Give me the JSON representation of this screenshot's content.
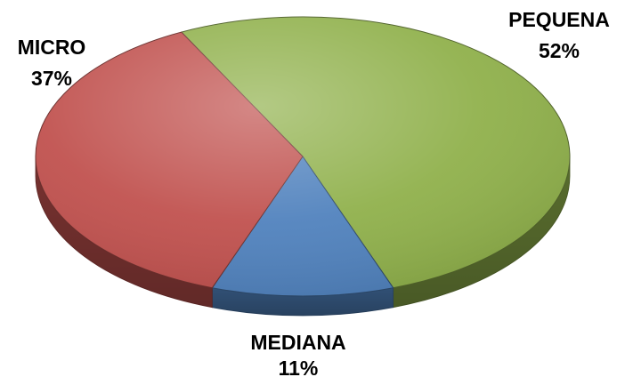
{
  "chart_data": {
    "type": "pie",
    "style": "3d",
    "slices": [
      {
        "label": "PEQUENA",
        "value": 52,
        "value_label": "52%",
        "color": "#8fb04a"
      },
      {
        "label": "MEDIANA",
        "value": 11,
        "value_label": "11%",
        "color": "#4f81bd"
      },
      {
        "label": "MICRO",
        "value": 37,
        "value_label": "37%",
        "color": "#c0504d"
      }
    ],
    "legend": "none"
  }
}
